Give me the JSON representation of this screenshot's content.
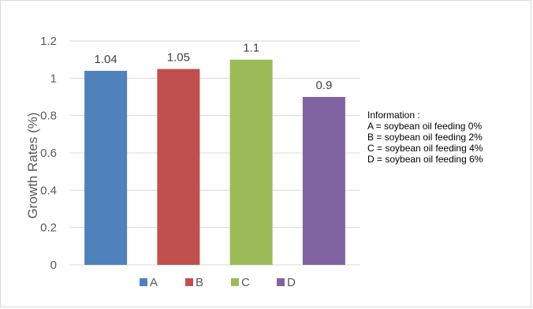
{
  "chart_data": {
    "type": "bar",
    "categories": [
      "A",
      "B",
      "C",
      "D"
    ],
    "values": [
      1.04,
      1.05,
      1.1,
      0.9
    ],
    "data_labels": [
      "1.04",
      "1.05",
      "1.1",
      "0.9"
    ],
    "colors": [
      "#4F81BD",
      "#C0504D",
      "#9BBB59",
      "#8064A2"
    ],
    "title": "",
    "xlabel": "",
    "ylabel": "Growth Rates  (%)",
    "ylim": [
      0,
      1.2
    ],
    "yticks": [
      "0",
      "0.2",
      "0.4",
      "0.6",
      "0.8",
      "1",
      "1.2"
    ],
    "grid": true,
    "legend_position": "bottom"
  },
  "info": {
    "heading": "Information :",
    "lines": [
      "A = soybean oil feeding 0%",
      "B = soybean oil feeding 2%",
      "C = soybean oil feeding 4%",
      "D = soybean oil feeding 6%"
    ]
  }
}
